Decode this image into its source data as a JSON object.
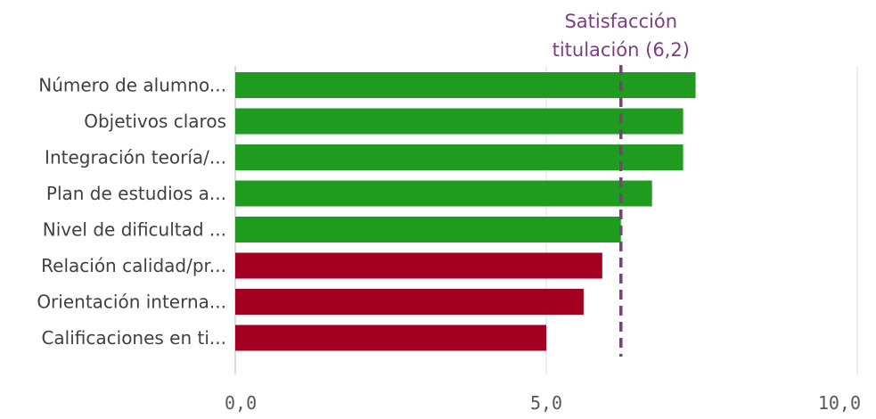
{
  "chart_data": {
    "type": "bar",
    "orientation": "horizontal",
    "categories": [
      "Número de alumno...",
      "Objetivos claros",
      "Integración teoría/...",
      "Plan de estudios a...",
      "Nivel de dificultad ...",
      "Relación calidad/pr...",
      "Orientación interna...",
      "Calificaciones en ti..."
    ],
    "values": [
      7.4,
      7.2,
      7.2,
      6.7,
      6.2,
      5.9,
      5.6,
      5.0
    ],
    "bar_colors": [
      "#1f9b1f",
      "#1f9b1f",
      "#1f9b1f",
      "#1f9b1f",
      "#1f9b1f",
      "#a30021",
      "#a30021",
      "#a30021"
    ],
    "xlim": [
      0,
      10
    ],
    "ticks": [
      {
        "value": 0,
        "label": "0,0"
      },
      {
        "value": 5,
        "label": "5,0"
      },
      {
        "value": 10,
        "label": "10,0"
      }
    ],
    "reference_line": {
      "value": 6.2,
      "label_lines": [
        "Satisfacción",
        "titulación (6,2)"
      ],
      "color": "#7b3f7f",
      "style": "dashed"
    },
    "grid": true,
    "title": "",
    "xlabel": "",
    "ylabel": ""
  }
}
